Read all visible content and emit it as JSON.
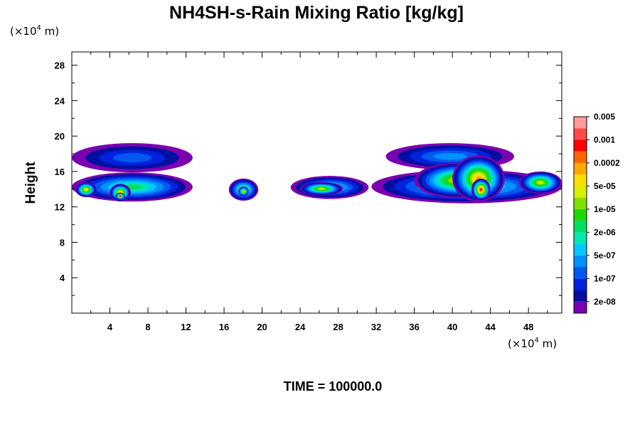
{
  "chart_data": {
    "type": "heatmap",
    "title": "NH4SH-s-Rain Mixing Ratio [kg/kg]",
    "ylabel": "Height",
    "x_unit": {
      "prefix": "(×10",
      "exp": "4",
      "suffix": " m)"
    },
    "y_unit": {
      "prefix": "(×10",
      "exp": "4",
      "suffix": " m)"
    },
    "xlim": [
      0,
      51.5
    ],
    "ylim": [
      0,
      29.5
    ],
    "x_ticks": [
      "4",
      "8",
      "12",
      "16",
      "20",
      "24",
      "28",
      "32",
      "36",
      "40",
      "44",
      "48"
    ],
    "y_ticks": [
      "4",
      "8",
      "12",
      "16",
      "20",
      "24",
      "28"
    ],
    "footer": "TIME = 100000.0",
    "colorbar": {
      "colors": [
        "#7a00b0",
        "#000fa0",
        "#0022dd",
        "#0058f0",
        "#0090ff",
        "#00c8ff",
        "#00e8b0",
        "#00e060",
        "#20d800",
        "#80e000",
        "#d8f000",
        "#ffe000",
        "#ffaa00",
        "#ff6400",
        "#ff0000",
        "#ff4a4a",
        "#ff9a9a"
      ],
      "labels": [
        "2e-08",
        "1e-07",
        "5e-07",
        "2e-06",
        "1e-05",
        "5e-05",
        "0.0002",
        "0.001",
        "0.005"
      ]
    },
    "regions": [
      {
        "x": [
          0,
          12.7
        ],
        "y": [
          12.6,
          15.9
        ],
        "level": 7
      },
      {
        "x": [
          0,
          12.7
        ],
        "y": [
          15.9,
          19.2
        ],
        "level": 3
      },
      {
        "x": [
          0.4,
          2.6
        ],
        "y": [
          13.1,
          14.8
        ],
        "level": 11
      },
      {
        "x": [
          4.0,
          6.2
        ],
        "y": [
          12.6,
          14.6
        ],
        "level": 12
      },
      {
        "x": [
          4.6,
          5.6
        ],
        "y": [
          12.8,
          13.6
        ],
        "level": 14
      },
      {
        "x": [
          16.5,
          19.6
        ],
        "y": [
          12.7,
          15.2
        ],
        "level": 8
      },
      {
        "x": [
          17.5,
          18.6
        ],
        "y": [
          13.2,
          14.3
        ],
        "level": 11
      },
      {
        "x": [
          23.0,
          31.2
        ],
        "y": [
          12.9,
          15.5
        ],
        "level": 6
      },
      {
        "x": [
          24.0,
          28.5
        ],
        "y": [
          13.3,
          14.8
        ],
        "level": 10
      },
      {
        "x": [
          31.5,
          51.5
        ],
        "y": [
          12.4,
          16.2
        ],
        "level": 7
      },
      {
        "x": [
          33.0,
          46.5
        ],
        "y": [
          16.2,
          19.2
        ],
        "level": 4
      },
      {
        "x": [
          36.0,
          45.0
        ],
        "y": [
          13.0,
          17.0
        ],
        "level": 10
      },
      {
        "x": [
          40.0,
          45.5
        ],
        "y": [
          12.6,
          17.8
        ],
        "level": 12
      },
      {
        "x": [
          42.0,
          44.0
        ],
        "y": [
          12.7,
          15.2
        ],
        "level": 14
      },
      {
        "x": [
          47.0,
          51.5
        ],
        "y": [
          13.5,
          16.0
        ],
        "level": 10
      }
    ]
  }
}
